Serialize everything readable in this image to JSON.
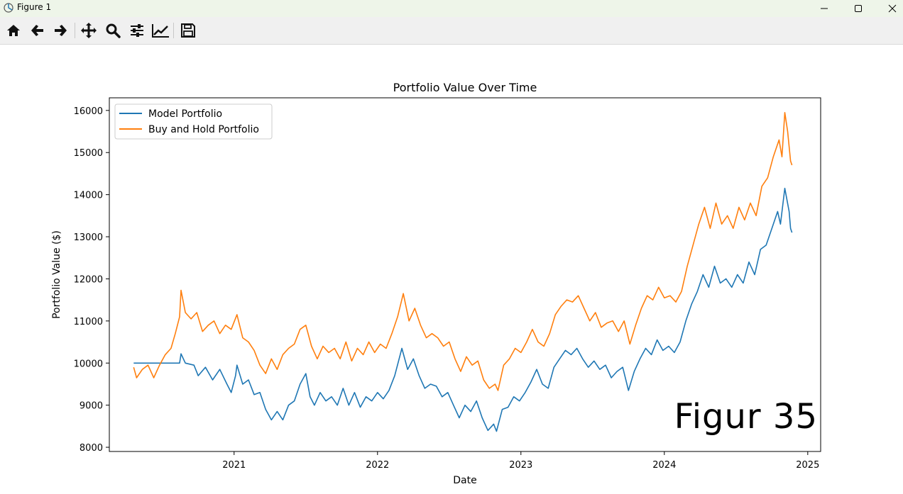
{
  "window": {
    "title": "Figure 1",
    "icons": [
      "figure-app-icon",
      "minimize-icon",
      "maximize-icon",
      "close-icon"
    ]
  },
  "toolbar": {
    "tools": [
      "home-icon",
      "back-icon",
      "forward-icon",
      "pan-icon",
      "zoom-icon",
      "configure-subplots-icon",
      "edit-axis-icon",
      "save-icon"
    ]
  },
  "colors": {
    "model": "#1f77b4",
    "buy_hold": "#ff7f0e"
  },
  "overlay_text": "Figur 35",
  "chart_data": {
    "type": "line",
    "title": "Portfolio Value Over Time",
    "xlabel": "Date",
    "ylabel": "Portfolio Value ($)",
    "xlim": [
      2020.13,
      2025.09
    ],
    "ylim": [
      7900,
      16300
    ],
    "xticks": [
      {
        "value": 2021,
        "label": "2021"
      },
      {
        "value": 2022,
        "label": "2022"
      },
      {
        "value": 2023,
        "label": "2023"
      },
      {
        "value": 2024,
        "label": "2024"
      },
      {
        "value": 2025,
        "label": "2025"
      }
    ],
    "yticks": [
      {
        "value": 8000,
        "label": "8000"
      },
      {
        "value": 9000,
        "label": "9000"
      },
      {
        "value": 10000,
        "label": "10000"
      },
      {
        "value": 11000,
        "label": "11000"
      },
      {
        "value": 12000,
        "label": "12000"
      },
      {
        "value": 13000,
        "label": "13000"
      },
      {
        "value": 14000,
        "label": "14000"
      },
      {
        "value": 15000,
        "label": "15000"
      },
      {
        "value": 16000,
        "label": "16000"
      }
    ],
    "legend_position": "upper-left",
    "series": [
      {
        "name": "Model Portfolio",
        "color": "#1f77b4",
        "points": [
          [
            2020.3,
            10000
          ],
          [
            2020.62,
            10000
          ],
          [
            2020.63,
            10220
          ],
          [
            2020.66,
            10000
          ],
          [
            2020.72,
            9950
          ],
          [
            2020.75,
            9700
          ],
          [
            2020.8,
            9900
          ],
          [
            2020.85,
            9600
          ],
          [
            2020.9,
            9850
          ],
          [
            2020.95,
            9500
          ],
          [
            2020.98,
            9300
          ],
          [
            2021.01,
            9700
          ],
          [
            2021.02,
            9950
          ],
          [
            2021.06,
            9500
          ],
          [
            2021.1,
            9600
          ],
          [
            2021.14,
            9250
          ],
          [
            2021.18,
            9300
          ],
          [
            2021.22,
            8900
          ],
          [
            2021.26,
            8650
          ],
          [
            2021.3,
            8850
          ],
          [
            2021.34,
            8650
          ],
          [
            2021.38,
            9000
          ],
          [
            2021.42,
            9100
          ],
          [
            2021.46,
            9500
          ],
          [
            2021.5,
            9750
          ],
          [
            2021.53,
            9200
          ],
          [
            2021.56,
            9000
          ],
          [
            2021.6,
            9300
          ],
          [
            2021.64,
            9100
          ],
          [
            2021.68,
            9200
          ],
          [
            2021.72,
            9000
          ],
          [
            2021.76,
            9400
          ],
          [
            2021.8,
            9000
          ],
          [
            2021.84,
            9300
          ],
          [
            2021.88,
            8950
          ],
          [
            2021.92,
            9200
          ],
          [
            2021.96,
            9100
          ],
          [
            2022.0,
            9300
          ],
          [
            2022.04,
            9150
          ],
          [
            2022.08,
            9350
          ],
          [
            2022.12,
            9700
          ],
          [
            2022.17,
            10350
          ],
          [
            2022.21,
            9850
          ],
          [
            2022.25,
            10100
          ],
          [
            2022.29,
            9700
          ],
          [
            2022.33,
            9400
          ],
          [
            2022.37,
            9500
          ],
          [
            2022.41,
            9450
          ],
          [
            2022.45,
            9200
          ],
          [
            2022.49,
            9300
          ],
          [
            2022.53,
            9000
          ],
          [
            2022.57,
            8700
          ],
          [
            2022.61,
            9000
          ],
          [
            2022.65,
            8850
          ],
          [
            2022.69,
            9100
          ],
          [
            2022.73,
            8700
          ],
          [
            2022.77,
            8400
          ],
          [
            2022.81,
            8550
          ],
          [
            2022.83,
            8380
          ],
          [
            2022.87,
            8900
          ],
          [
            2022.91,
            8950
          ],
          [
            2022.95,
            9200
          ],
          [
            2022.99,
            9100
          ],
          [
            2023.03,
            9300
          ],
          [
            2023.07,
            9550
          ],
          [
            2023.11,
            9850
          ],
          [
            2023.15,
            9500
          ],
          [
            2023.19,
            9400
          ],
          [
            2023.23,
            9900
          ],
          [
            2023.27,
            10100
          ],
          [
            2023.31,
            10300
          ],
          [
            2023.35,
            10200
          ],
          [
            2023.39,
            10350
          ],
          [
            2023.43,
            10100
          ],
          [
            2023.47,
            9900
          ],
          [
            2023.51,
            10050
          ],
          [
            2023.55,
            9850
          ],
          [
            2023.59,
            9950
          ],
          [
            2023.63,
            9650
          ],
          [
            2023.67,
            9800
          ],
          [
            2023.71,
            9900
          ],
          [
            2023.75,
            9350
          ],
          [
            2023.79,
            9800
          ],
          [
            2023.83,
            10100
          ],
          [
            2023.87,
            10350
          ],
          [
            2023.91,
            10200
          ],
          [
            2023.95,
            10550
          ],
          [
            2023.99,
            10300
          ],
          [
            2024.03,
            10400
          ],
          [
            2024.07,
            10250
          ],
          [
            2024.11,
            10500
          ],
          [
            2024.15,
            11000
          ],
          [
            2024.19,
            11400
          ],
          [
            2024.23,
            11700
          ],
          [
            2024.27,
            12100
          ],
          [
            2024.31,
            11800
          ],
          [
            2024.35,
            12300
          ],
          [
            2024.39,
            11900
          ],
          [
            2024.43,
            12000
          ],
          [
            2024.47,
            11800
          ],
          [
            2024.51,
            12100
          ],
          [
            2024.55,
            11900
          ],
          [
            2024.59,
            12400
          ],
          [
            2024.63,
            12100
          ],
          [
            2024.67,
            12700
          ],
          [
            2024.71,
            12800
          ],
          [
            2024.75,
            13200
          ],
          [
            2024.79,
            13600
          ],
          [
            2024.81,
            13300
          ],
          [
            2024.84,
            14150
          ],
          [
            2024.87,
            13600
          ],
          [
            2024.88,
            13200
          ],
          [
            2024.89,
            13100
          ]
        ]
      },
      {
        "name": "Buy and Hold Portfolio",
        "color": "#ff7f0e",
        "points": [
          [
            2020.3,
            9900
          ],
          [
            2020.32,
            9650
          ],
          [
            2020.36,
            9850
          ],
          [
            2020.4,
            9950
          ],
          [
            2020.44,
            9650
          ],
          [
            2020.48,
            9950
          ],
          [
            2020.52,
            10200
          ],
          [
            2020.56,
            10350
          ],
          [
            2020.59,
            10700
          ],
          [
            2020.62,
            11100
          ],
          [
            2020.63,
            11730
          ],
          [
            2020.66,
            11200
          ],
          [
            2020.7,
            11050
          ],
          [
            2020.74,
            11200
          ],
          [
            2020.78,
            10750
          ],
          [
            2020.82,
            10900
          ],
          [
            2020.86,
            11000
          ],
          [
            2020.9,
            10700
          ],
          [
            2020.94,
            10900
          ],
          [
            2020.98,
            10800
          ],
          [
            2021.02,
            11150
          ],
          [
            2021.06,
            10600
          ],
          [
            2021.1,
            10500
          ],
          [
            2021.14,
            10300
          ],
          [
            2021.18,
            9950
          ],
          [
            2021.22,
            9750
          ],
          [
            2021.26,
            10100
          ],
          [
            2021.3,
            9850
          ],
          [
            2021.34,
            10200
          ],
          [
            2021.38,
            10350
          ],
          [
            2021.42,
            10450
          ],
          [
            2021.46,
            10800
          ],
          [
            2021.5,
            10900
          ],
          [
            2021.54,
            10400
          ],
          [
            2021.58,
            10100
          ],
          [
            2021.62,
            10400
          ],
          [
            2021.66,
            10250
          ],
          [
            2021.7,
            10350
          ],
          [
            2021.74,
            10100
          ],
          [
            2021.78,
            10500
          ],
          [
            2021.82,
            10050
          ],
          [
            2021.86,
            10350
          ],
          [
            2021.9,
            10200
          ],
          [
            2021.94,
            10500
          ],
          [
            2021.98,
            10250
          ],
          [
            2022.02,
            10450
          ],
          [
            2022.06,
            10350
          ],
          [
            2022.1,
            10700
          ],
          [
            2022.14,
            11100
          ],
          [
            2022.18,
            11650
          ],
          [
            2022.22,
            11000
          ],
          [
            2022.26,
            11300
          ],
          [
            2022.3,
            10900
          ],
          [
            2022.34,
            10600
          ],
          [
            2022.38,
            10700
          ],
          [
            2022.42,
            10600
          ],
          [
            2022.46,
            10400
          ],
          [
            2022.5,
            10500
          ],
          [
            2022.54,
            10100
          ],
          [
            2022.58,
            9800
          ],
          [
            2022.62,
            10150
          ],
          [
            2022.66,
            9950
          ],
          [
            2022.7,
            10050
          ],
          [
            2022.74,
            9600
          ],
          [
            2022.78,
            9400
          ],
          [
            2022.82,
            9500
          ],
          [
            2022.84,
            9350
          ],
          [
            2022.88,
            9950
          ],
          [
            2022.92,
            10100
          ],
          [
            2022.96,
            10350
          ],
          [
            2023.0,
            10250
          ],
          [
            2023.04,
            10500
          ],
          [
            2023.08,
            10800
          ],
          [
            2023.12,
            10500
          ],
          [
            2023.16,
            10400
          ],
          [
            2023.2,
            10700
          ],
          [
            2023.24,
            11150
          ],
          [
            2023.28,
            11350
          ],
          [
            2023.32,
            11500
          ],
          [
            2023.36,
            11450
          ],
          [
            2023.4,
            11600
          ],
          [
            2023.44,
            11300
          ],
          [
            2023.48,
            11000
          ],
          [
            2023.52,
            11200
          ],
          [
            2023.56,
            10850
          ],
          [
            2023.6,
            10950
          ],
          [
            2023.64,
            11000
          ],
          [
            2023.68,
            10750
          ],
          [
            2023.72,
            11000
          ],
          [
            2023.76,
            10450
          ],
          [
            2023.8,
            10900
          ],
          [
            2023.84,
            11300
          ],
          [
            2023.88,
            11600
          ],
          [
            2023.92,
            11500
          ],
          [
            2023.96,
            11800
          ],
          [
            2024.0,
            11550
          ],
          [
            2024.04,
            11600
          ],
          [
            2024.08,
            11450
          ],
          [
            2024.12,
            11700
          ],
          [
            2024.16,
            12300
          ],
          [
            2024.2,
            12800
          ],
          [
            2024.24,
            13300
          ],
          [
            2024.28,
            13700
          ],
          [
            2024.32,
            13200
          ],
          [
            2024.36,
            13800
          ],
          [
            2024.4,
            13300
          ],
          [
            2024.44,
            13500
          ],
          [
            2024.48,
            13200
          ],
          [
            2024.52,
            13700
          ],
          [
            2024.56,
            13400
          ],
          [
            2024.6,
            13800
          ],
          [
            2024.64,
            13500
          ],
          [
            2024.68,
            14200
          ],
          [
            2024.72,
            14400
          ],
          [
            2024.76,
            14900
          ],
          [
            2024.8,
            15300
          ],
          [
            2024.82,
            14900
          ],
          [
            2024.84,
            15950
          ],
          [
            2024.86,
            15500
          ],
          [
            2024.88,
            14800
          ],
          [
            2024.89,
            14700
          ]
        ]
      }
    ]
  }
}
